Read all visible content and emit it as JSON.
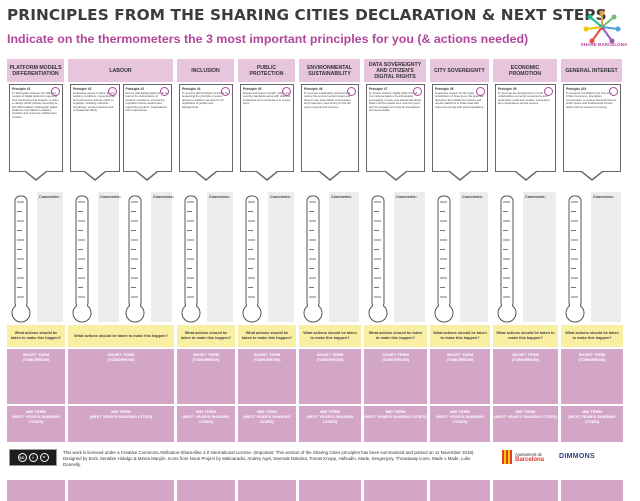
{
  "header": {
    "title": "PRINCIPLES FROM THE SHARING CITIES DECLARATION & NEXT STEPS",
    "subtitle": "Indicate on the thermometers the 3 most important principles for you (& actions needed)",
    "logo_text": "SHARE BARCELONA"
  },
  "columns": [
    {
      "key": "platform",
      "label": "PLATFORM MODELS DIFFERENTIATION",
      "cards": [
        {
          "num": "Principle #1",
          "text": "To distinguish between the different models of digital platforms regarding their functioning and impacts, in order to design public policies according to this differentiation. Distinguish digital platforms and platform-enabled activities and seek true collaborative models."
        }
      ]
    },
    {
      "key": "labour",
      "label": "LABOUR",
      "cards": [
        {
          "num": "Principle #2",
          "text": "Guarantee people to have decent working conditions, respecting fair and just income and the rights to organise, including collective bargaining, social protection and occupational safety."
        },
        {
          "num": "Principle #3",
          "text": "Ensure that digital platforms do not lead to the deterioration of workers' conditions, introducing regulation where needed and supporting workers' organisations and cooperatives."
        }
      ]
    },
    {
      "key": "inclusion",
      "label": "INCLUSION",
      "cards": [
        {
          "num": "Principle #4",
          "text": "To prevent discrimination and bias by respecting the principle of equal access to platform services for all regardless of gender and backgrounds."
        }
      ]
    },
    {
      "key": "public",
      "label": "PUBLIC PROTECTION",
      "cards": [
        {
          "num": "Principle #5",
          "text": "Ensure and support health, safety and security standards along with effective institutions and mechanisms to protect them."
        }
      ]
    },
    {
      "key": "env",
      "label": "ENVIRONMENTAL SUSTAINABILITY",
      "cards": [
        {
          "num": "Principle #6",
          "text": "To promote sustainable practices that reduce the environmental impact and favour more responsible consumption and production, accounting for the life cycle of goods and services."
        }
      ]
    },
    {
      "key": "data",
      "label": "DATA SOVEREIGNTY AND CITIZEN'S DIGITAL RIGHTS",
      "cards": [
        {
          "num": "Principle #7",
          "text": "To protect citizens' digital rights through the implementation of technological sovereignty, privacy and ethical standards. Data must be treated as a common good and its management must be transparent and accountable."
        }
      ]
    },
    {
      "key": "city",
      "label": "CITY SOVEREIGNTY",
      "cards": [
        {
          "num": "Principle #8",
          "text": "Guarantee respect for the legal jurisdictions of cities given the potential disruption that platforms produce and require platforms to share data with cities and comply with local regulations."
        }
      ]
    },
    {
      "key": "econ",
      "label": "ECONOMIC PROMOTION",
      "cards": [
        {
          "num": "Principle #9",
          "text": "To promote the development of local collaborative economic ecosystems and particularly small and medium enterprises and cooperatives across sectors."
        }
      ]
    },
    {
      "key": "general",
      "label": "GENERAL INTEREST",
      "cards": [
        {
          "num": "Principle #10",
          "text": "To preserve the Right to the City and Urban Commons, strengthen communities, to protect General Interest, public space and fundamental human rights such as access to housing."
        }
      ]
    }
  ],
  "labels": {
    "comments": "Comments:",
    "actions": "What actions should be taken to make this happen?",
    "short_term": "SHORT TERM",
    "short_term_sub": "(TOMORROW)",
    "mid_term": "MID TERM",
    "mid_term_sub": "(NEXT YEAR'S SHARING CITIES)",
    "long_term": "LONG TERM",
    "long_term_sub": "(BEFORE 2030)"
  },
  "footer": {
    "license": "This work is licensed under a Creative Commons Attribution-ShareAlike 4.0 International License. (Important: This version of the Sharing Cities principles has been summarised and printed on 11 November 2018).",
    "credits": "Designed by Enric Senabre Hidalgo & Mireia Manjón. Icons from Noun Project by Makoaradio, Andrey Agni, Deemak Daksina, Tomas Knopp, Hafsudin, Made, Sevgenjory, Throwaway icons, Made x Made, Luke Donnelly.",
    "cc_label": "cc BY SA",
    "city_name": "Barcelona",
    "city_sub": "Ajuntament de",
    "partner": "DIMMONS"
  },
  "colors": {
    "title": "#3c3c3c",
    "accent": "#b2469b",
    "header_bg": "#e6c5dd",
    "term_box": "#d3a6c8",
    "action_bg": "#f9efa3",
    "comment_bg": "#ececec"
  },
  "icons": [
    "platform-icon",
    "worker-icon",
    "inclusion-icon",
    "shield-icon",
    "leaf-icon",
    "data-icon",
    "city-icon",
    "economy-icon",
    "community-icon"
  ]
}
